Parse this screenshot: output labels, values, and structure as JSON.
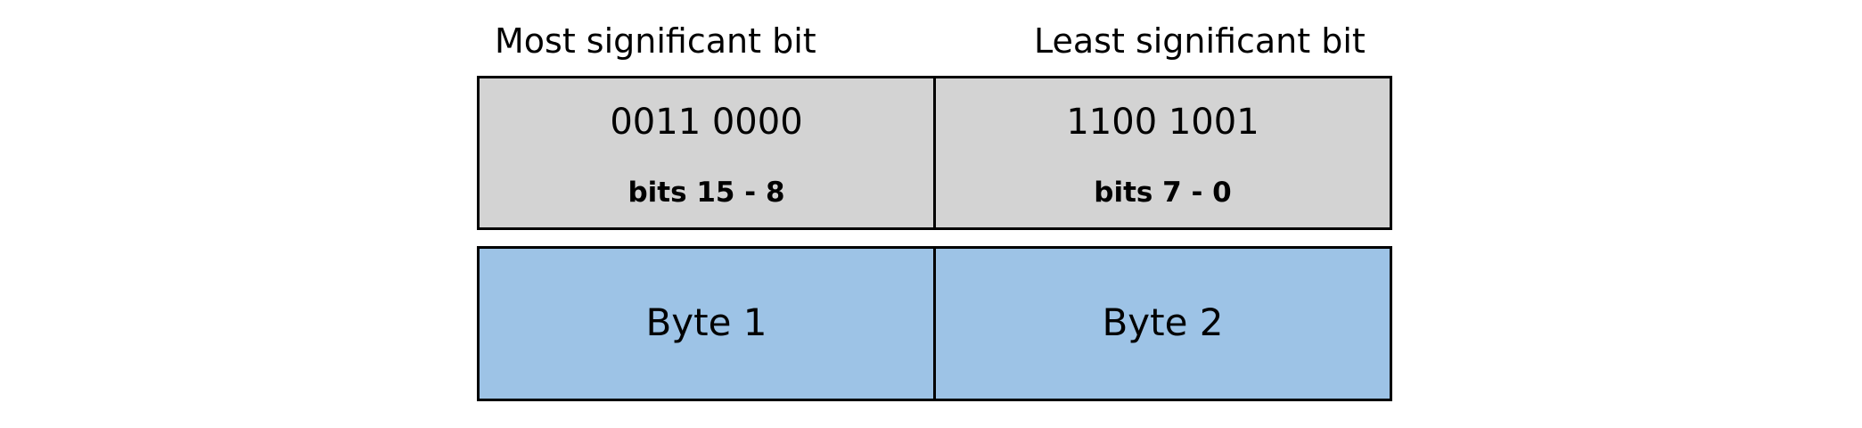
{
  "labels": {
    "msb": "Most significant bit",
    "lsb": "Least significant bit"
  },
  "bits": [
    {
      "value": "0011 0000",
      "range": "bits 15 - 8"
    },
    {
      "value": "1100 1001",
      "range": "bits 7 - 0"
    }
  ],
  "bytes": [
    "Byte 1",
    "Byte 2"
  ],
  "colors": {
    "bits_fill": "#d3d3d3",
    "bytes_fill": "#9dc3e6",
    "border": "#000000"
  }
}
